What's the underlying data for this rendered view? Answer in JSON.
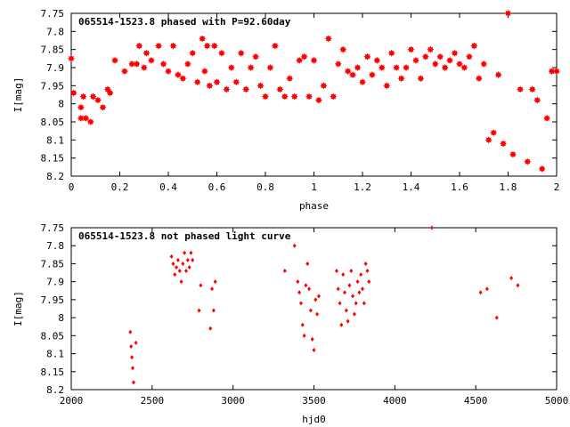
{
  "chart_data": [
    {
      "type": "scatter",
      "title": "065514-1523.8 phased with P=92.60day",
      "xlabel": "phase",
      "ylabel": "I[mag]",
      "xlim": [
        0,
        2
      ],
      "ylim": [
        7.75,
        8.2
      ],
      "y_inverted": true,
      "x_ticks": [
        "0",
        "0.2",
        "0.4",
        "0.6",
        "0.8",
        "1",
        "1.2",
        "1.4",
        "1.6",
        "1.8",
        "2"
      ],
      "y_ticks": [
        "7.75",
        "7.8",
        "7.85",
        "7.9",
        "7.95",
        "8",
        "8.05",
        "8.1",
        "8.15",
        "8.2"
      ],
      "marker": "filled-star",
      "color": "#ff0000",
      "grid": false,
      "points": [
        [
          0.0,
          7.875
        ],
        [
          0.01,
          7.97
        ],
        [
          0.04,
          8.01
        ],
        [
          0.04,
          8.04
        ],
        [
          0.05,
          7.98
        ],
        [
          0.06,
          8.04
        ],
        [
          0.08,
          8.05
        ],
        [
          0.09,
          7.98
        ],
        [
          0.11,
          7.99
        ],
        [
          0.13,
          8.01
        ],
        [
          0.15,
          7.96
        ],
        [
          0.16,
          7.97
        ],
        [
          0.18,
          7.88
        ],
        [
          0.22,
          7.91
        ],
        [
          0.25,
          7.89
        ],
        [
          0.27,
          7.89
        ],
        [
          0.28,
          7.84
        ],
        [
          0.3,
          7.9
        ],
        [
          0.31,
          7.86
        ],
        [
          0.33,
          7.88
        ],
        [
          0.36,
          7.84
        ],
        [
          0.38,
          7.89
        ],
        [
          0.4,
          7.91
        ],
        [
          0.42,
          7.84
        ],
        [
          0.44,
          7.92
        ],
        [
          0.46,
          7.93
        ],
        [
          0.48,
          7.89
        ],
        [
          0.5,
          7.86
        ],
        [
          0.52,
          7.94
        ],
        [
          0.54,
          7.82
        ],
        [
          0.55,
          7.91
        ],
        [
          0.56,
          7.84
        ],
        [
          0.57,
          7.95
        ],
        [
          0.59,
          7.84
        ],
        [
          0.6,
          7.94
        ],
        [
          0.62,
          7.86
        ],
        [
          0.64,
          7.96
        ],
        [
          0.66,
          7.9
        ],
        [
          0.68,
          7.94
        ],
        [
          0.7,
          7.86
        ],
        [
          0.72,
          7.96
        ],
        [
          0.74,
          7.9
        ],
        [
          0.76,
          7.87
        ],
        [
          0.78,
          7.95
        ],
        [
          0.8,
          7.98
        ],
        [
          0.82,
          7.9
        ],
        [
          0.84,
          7.84
        ],
        [
          0.86,
          7.96
        ],
        [
          0.88,
          7.98
        ],
        [
          0.9,
          7.93
        ],
        [
          0.92,
          7.98
        ],
        [
          0.94,
          7.88
        ],
        [
          0.96,
          7.87
        ],
        [
          0.98,
          7.98
        ],
        [
          1.0,
          7.88
        ],
        [
          1.02,
          7.99
        ],
        [
          1.04,
          7.95
        ],
        [
          1.06,
          7.82
        ],
        [
          1.08,
          7.98
        ],
        [
          1.1,
          7.89
        ],
        [
          1.12,
          7.85
        ],
        [
          1.14,
          7.91
        ],
        [
          1.16,
          7.92
        ],
        [
          1.18,
          7.9
        ],
        [
          1.2,
          7.94
        ],
        [
          1.22,
          7.87
        ],
        [
          1.24,
          7.92
        ],
        [
          1.26,
          7.88
        ],
        [
          1.28,
          7.9
        ],
        [
          1.3,
          7.95
        ],
        [
          1.32,
          7.86
        ],
        [
          1.34,
          7.9
        ],
        [
          1.36,
          7.93
        ],
        [
          1.38,
          7.9
        ],
        [
          1.4,
          7.85
        ],
        [
          1.42,
          7.88
        ],
        [
          1.44,
          7.93
        ],
        [
          1.46,
          7.87
        ],
        [
          1.48,
          7.85
        ],
        [
          1.5,
          7.89
        ],
        [
          1.52,
          7.87
        ],
        [
          1.54,
          7.9
        ],
        [
          1.56,
          7.88
        ],
        [
          1.58,
          7.86
        ],
        [
          1.6,
          7.89
        ],
        [
          1.62,
          7.9
        ],
        [
          1.64,
          7.87
        ],
        [
          1.66,
          7.84
        ],
        [
          1.68,
          7.93
        ],
        [
          1.7,
          7.89
        ],
        [
          1.72,
          8.1
        ],
        [
          1.74,
          8.08
        ],
        [
          1.76,
          7.92
        ],
        [
          1.78,
          8.11
        ],
        [
          1.8,
          7.75
        ],
        [
          1.82,
          8.14
        ],
        [
          1.85,
          7.96
        ],
        [
          1.88,
          8.16
        ],
        [
          1.9,
          7.96
        ],
        [
          1.92,
          7.99
        ],
        [
          1.94,
          8.18
        ],
        [
          1.96,
          8.04
        ],
        [
          1.98,
          7.91
        ],
        [
          2.0,
          7.91
        ]
      ]
    },
    {
      "type": "scatter",
      "title": "065514-1523.8 not phased light curve",
      "xlabel": "hjd0",
      "ylabel": "I[mag]",
      "xlim": [
        2000,
        5000
      ],
      "ylim": [
        7.75,
        8.2
      ],
      "y_inverted": true,
      "x_ticks": [
        "2000",
        "2500",
        "3000",
        "3500",
        "4000",
        "4500",
        "5000"
      ],
      "y_ticks": [
        "7.75",
        "7.8",
        "7.85",
        "7.9",
        "7.95",
        "8",
        "8.05",
        "8.1",
        "8.15",
        "8.2"
      ],
      "marker": "small-dot",
      "color": "#ff0000",
      "grid": false,
      "points": [
        [
          2365,
          8.04
        ],
        [
          2370,
          8.08
        ],
        [
          2375,
          8.11
        ],
        [
          2380,
          8.14
        ],
        [
          2385,
          8.18
        ],
        [
          2400,
          8.07
        ],
        [
          2620,
          7.83
        ],
        [
          2630,
          7.85
        ],
        [
          2640,
          7.88
        ],
        [
          2650,
          7.86
        ],
        [
          2660,
          7.84
        ],
        [
          2670,
          7.87
        ],
        [
          2680,
          7.9
        ],
        [
          2690,
          7.85
        ],
        [
          2700,
          7.82
        ],
        [
          2710,
          7.87
        ],
        [
          2720,
          7.84
        ],
        [
          2730,
          7.86
        ],
        [
          2740,
          7.82
        ],
        [
          2750,
          7.84
        ],
        [
          2790,
          7.98
        ],
        [
          2800,
          7.91
        ],
        [
          2860,
          8.03
        ],
        [
          2870,
          7.92
        ],
        [
          2880,
          7.98
        ],
        [
          2890,
          7.9
        ],
        [
          3320,
          7.87
        ],
        [
          3380,
          7.8
        ],
        [
          3400,
          7.9
        ],
        [
          3410,
          7.93
        ],
        [
          3420,
          7.96
        ],
        [
          3430,
          8.02
        ],
        [
          3440,
          8.05
        ],
        [
          3450,
          7.91
        ],
        [
          3460,
          7.85
        ],
        [
          3470,
          7.92
        ],
        [
          3480,
          7.98
        ],
        [
          3490,
          8.06
        ],
        [
          3500,
          8.09
        ],
        [
          3510,
          7.95
        ],
        [
          3520,
          7.99
        ],
        [
          3530,
          7.94
        ],
        [
          3640,
          7.87
        ],
        [
          3650,
          7.92
        ],
        [
          3660,
          7.96
        ],
        [
          3670,
          8.02
        ],
        [
          3680,
          7.88
        ],
        [
          3690,
          7.93
        ],
        [
          3700,
          7.98
        ],
        [
          3710,
          8.01
        ],
        [
          3720,
          7.91
        ],
        [
          3730,
          7.87
        ],
        [
          3740,
          7.94
        ],
        [
          3750,
          7.99
        ],
        [
          3760,
          7.96
        ],
        [
          3770,
          7.9
        ],
        [
          3780,
          7.93
        ],
        [
          3790,
          7.88
        ],
        [
          3800,
          7.92
        ],
        [
          3810,
          7.96
        ],
        [
          3820,
          7.85
        ],
        [
          3830,
          7.87
        ],
        [
          3840,
          7.9
        ],
        [
          4230,
          7.75
        ],
        [
          4530,
          7.93
        ],
        [
          4570,
          7.92
        ],
        [
          4630,
          8.0
        ],
        [
          4720,
          7.89
        ],
        [
          4760,
          7.91
        ]
      ]
    }
  ]
}
